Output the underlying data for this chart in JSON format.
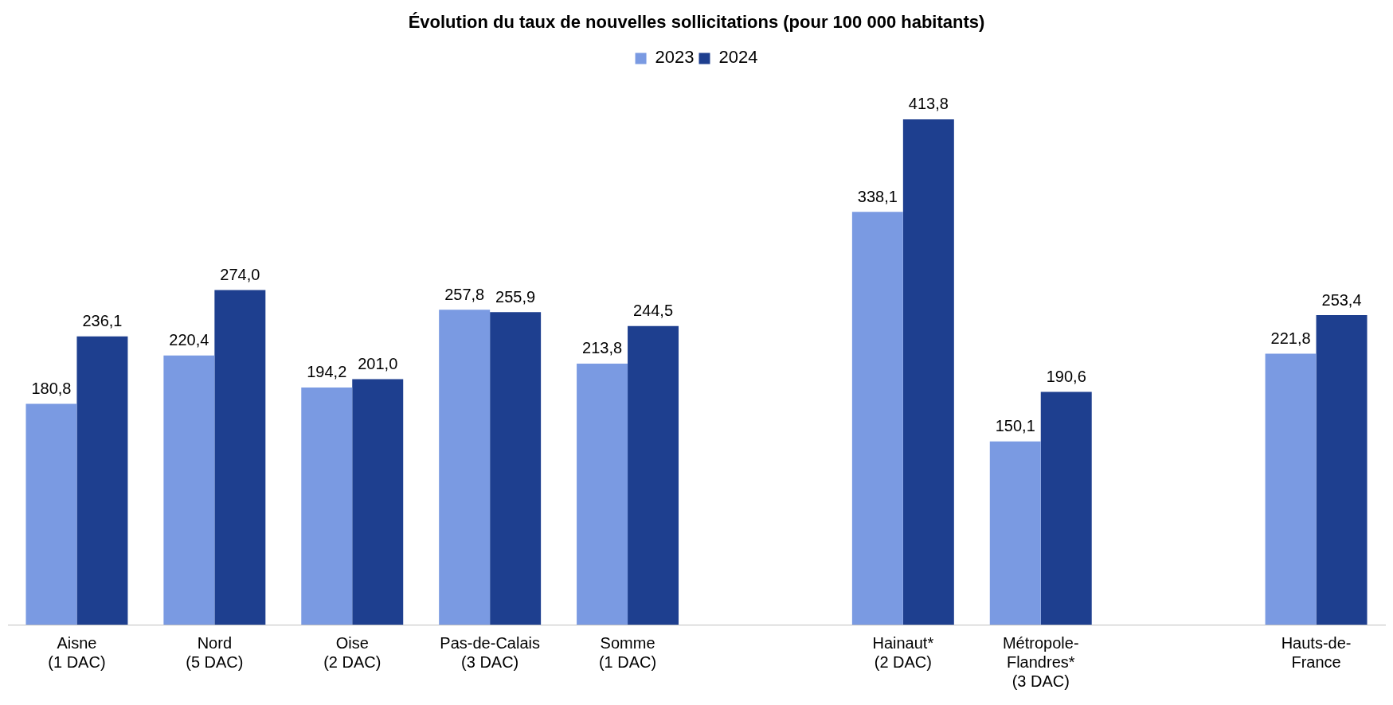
{
  "chart_data": {
    "type": "bar",
    "title": "Évolution du taux de nouvelles sollicitations (pour 100 000 habitants)",
    "categories": [
      "Aisne\n(1 DAC)",
      "Nord\n(5 DAC)",
      "Oise\n(2 DAC)",
      "Pas-de-Calais\n(3 DAC)",
      "Somme\n(1 DAC)",
      null,
      "Hainaut*\n(2 DAC)",
      "Métropole-\nFlandres*\n(3 DAC)",
      null,
      "Hauts-de-\nFrance"
    ],
    "series": [
      {
        "name": "2023",
        "color": "#7a9ae2",
        "values": [
          180.8,
          220.4,
          194.2,
          257.8,
          213.8,
          null,
          338.1,
          150.1,
          null,
          221.8
        ],
        "value_labels": [
          "180,8",
          "220,4",
          "194,2",
          "257,8",
          "213,8",
          null,
          "338,1",
          "150,1",
          null,
          "221,8"
        ]
      },
      {
        "name": "2024",
        "color": "#1e3f8f",
        "values": [
          236.1,
          274.0,
          201.0,
          255.9,
          244.5,
          null,
          413.8,
          190.6,
          null,
          253.4
        ],
        "value_labels": [
          "236,1",
          "274,0",
          "201,0",
          "255,9",
          "244,5",
          null,
          "413,8",
          "190,6",
          null,
          "253,4"
        ]
      }
    ],
    "legend": "top",
    "grid": false,
    "tick_labels": "x"
  }
}
